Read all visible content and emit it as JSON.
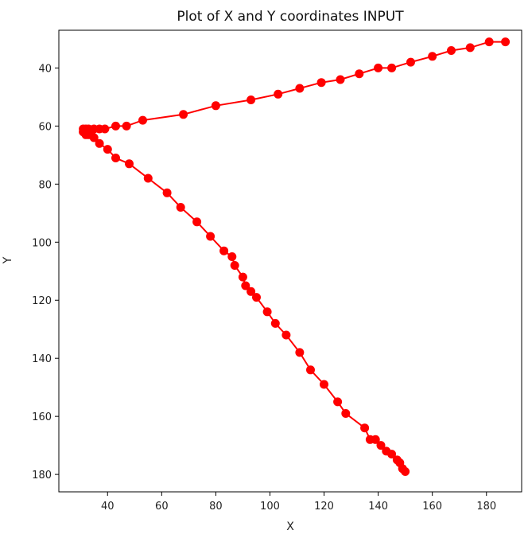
{
  "chart_data": {
    "type": "line",
    "title": "Plot of X and Y coordinates INPUT",
    "xlabel": "X",
    "ylabel": "Y",
    "xlim": [
      22,
      193
    ],
    "ylim": [
      27,
      186
    ],
    "y_inverted": true,
    "grid": false,
    "x_ticks": [
      40,
      60,
      80,
      100,
      120,
      140,
      160,
      180
    ],
    "y_ticks": [
      40,
      60,
      80,
      100,
      120,
      140,
      160,
      180
    ],
    "colors": {
      "series": "#ff0000",
      "axes": "#000000"
    },
    "markers": true,
    "series": [
      {
        "x": [
          187,
          181,
          174,
          167,
          160,
          152,
          145,
          140,
          133,
          126,
          119,
          111,
          103,
          93,
          80,
          68,
          53,
          47,
          43,
          39,
          37,
          35,
          33,
          32,
          31,
          31,
          32,
          33,
          34,
          35,
          37,
          40,
          43,
          48,
          55,
          62,
          67,
          73,
          78,
          83,
          86,
          87,
          90,
          91,
          93,
          95,
          99,
          102,
          106,
          111,
          115,
          120,
          125,
          128,
          135,
          137,
          139,
          141,
          143,
          145,
          147,
          148,
          149,
          150
        ],
        "y": [
          31,
          31,
          33,
          34,
          36,
          38,
          40,
          40,
          42,
          44,
          45,
          47,
          49,
          51,
          53,
          56,
          58,
          60,
          60,
          61,
          61,
          61,
          61,
          61,
          61,
          62,
          63,
          63,
          63,
          64,
          66,
          68,
          71,
          73,
          78,
          83,
          88,
          93,
          98,
          103,
          105,
          108,
          112,
          115,
          117,
          119,
          124,
          128,
          132,
          138,
          144,
          149,
          155,
          159,
          164,
          168,
          168,
          170,
          172,
          173,
          175,
          176,
          178,
          179
        ]
      }
    ]
  }
}
